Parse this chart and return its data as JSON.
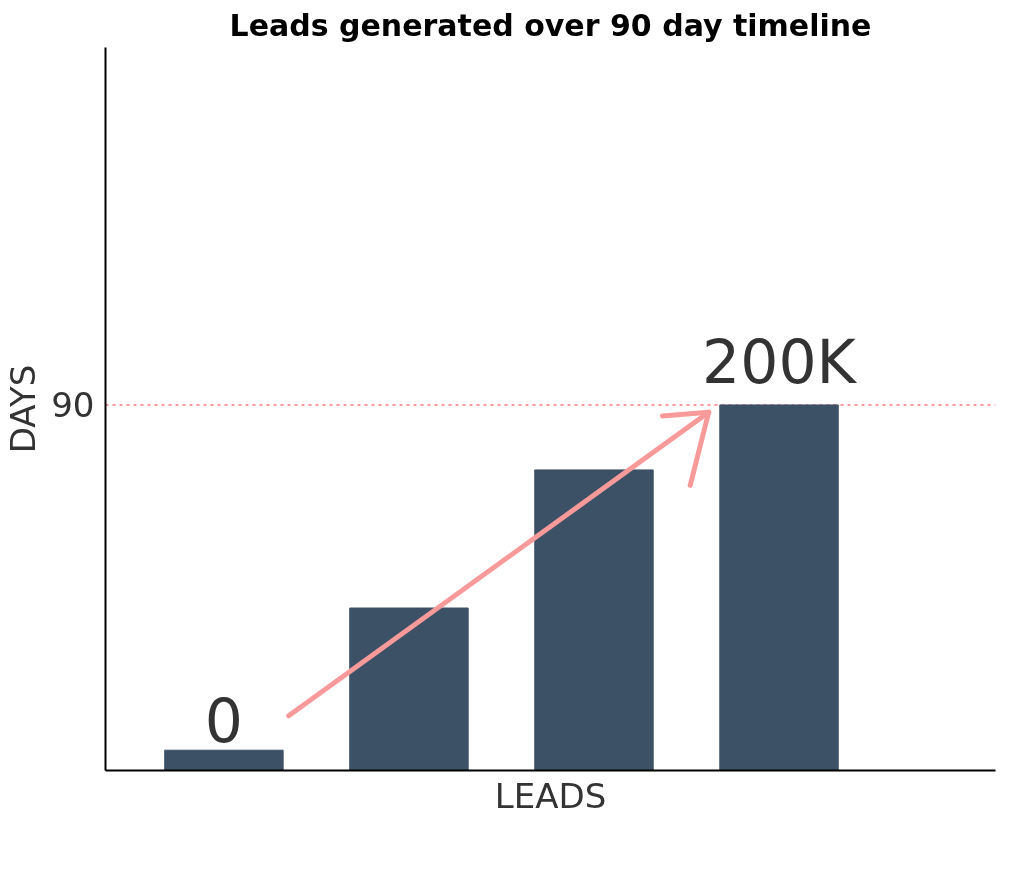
{
  "chart_data": {
    "type": "bar",
    "title": "Leads generated over 90 day timeline",
    "xlabel": "LEADS",
    "ylabel": "DAYS",
    "categories": [
      null,
      null,
      null,
      null
    ],
    "values": [
      5,
      40,
      74,
      90
    ],
    "color": "#3d5166",
    "ylim": [
      0,
      178
    ],
    "yticks": [
      90
    ],
    "annotations": [
      "0",
      "200K"
    ],
    "ref_lines": [
      {
        "axis": "y",
        "value": 90,
        "color": "#f99a9a",
        "line_style": "dotted"
      }
    ],
    "grid": false
  }
}
